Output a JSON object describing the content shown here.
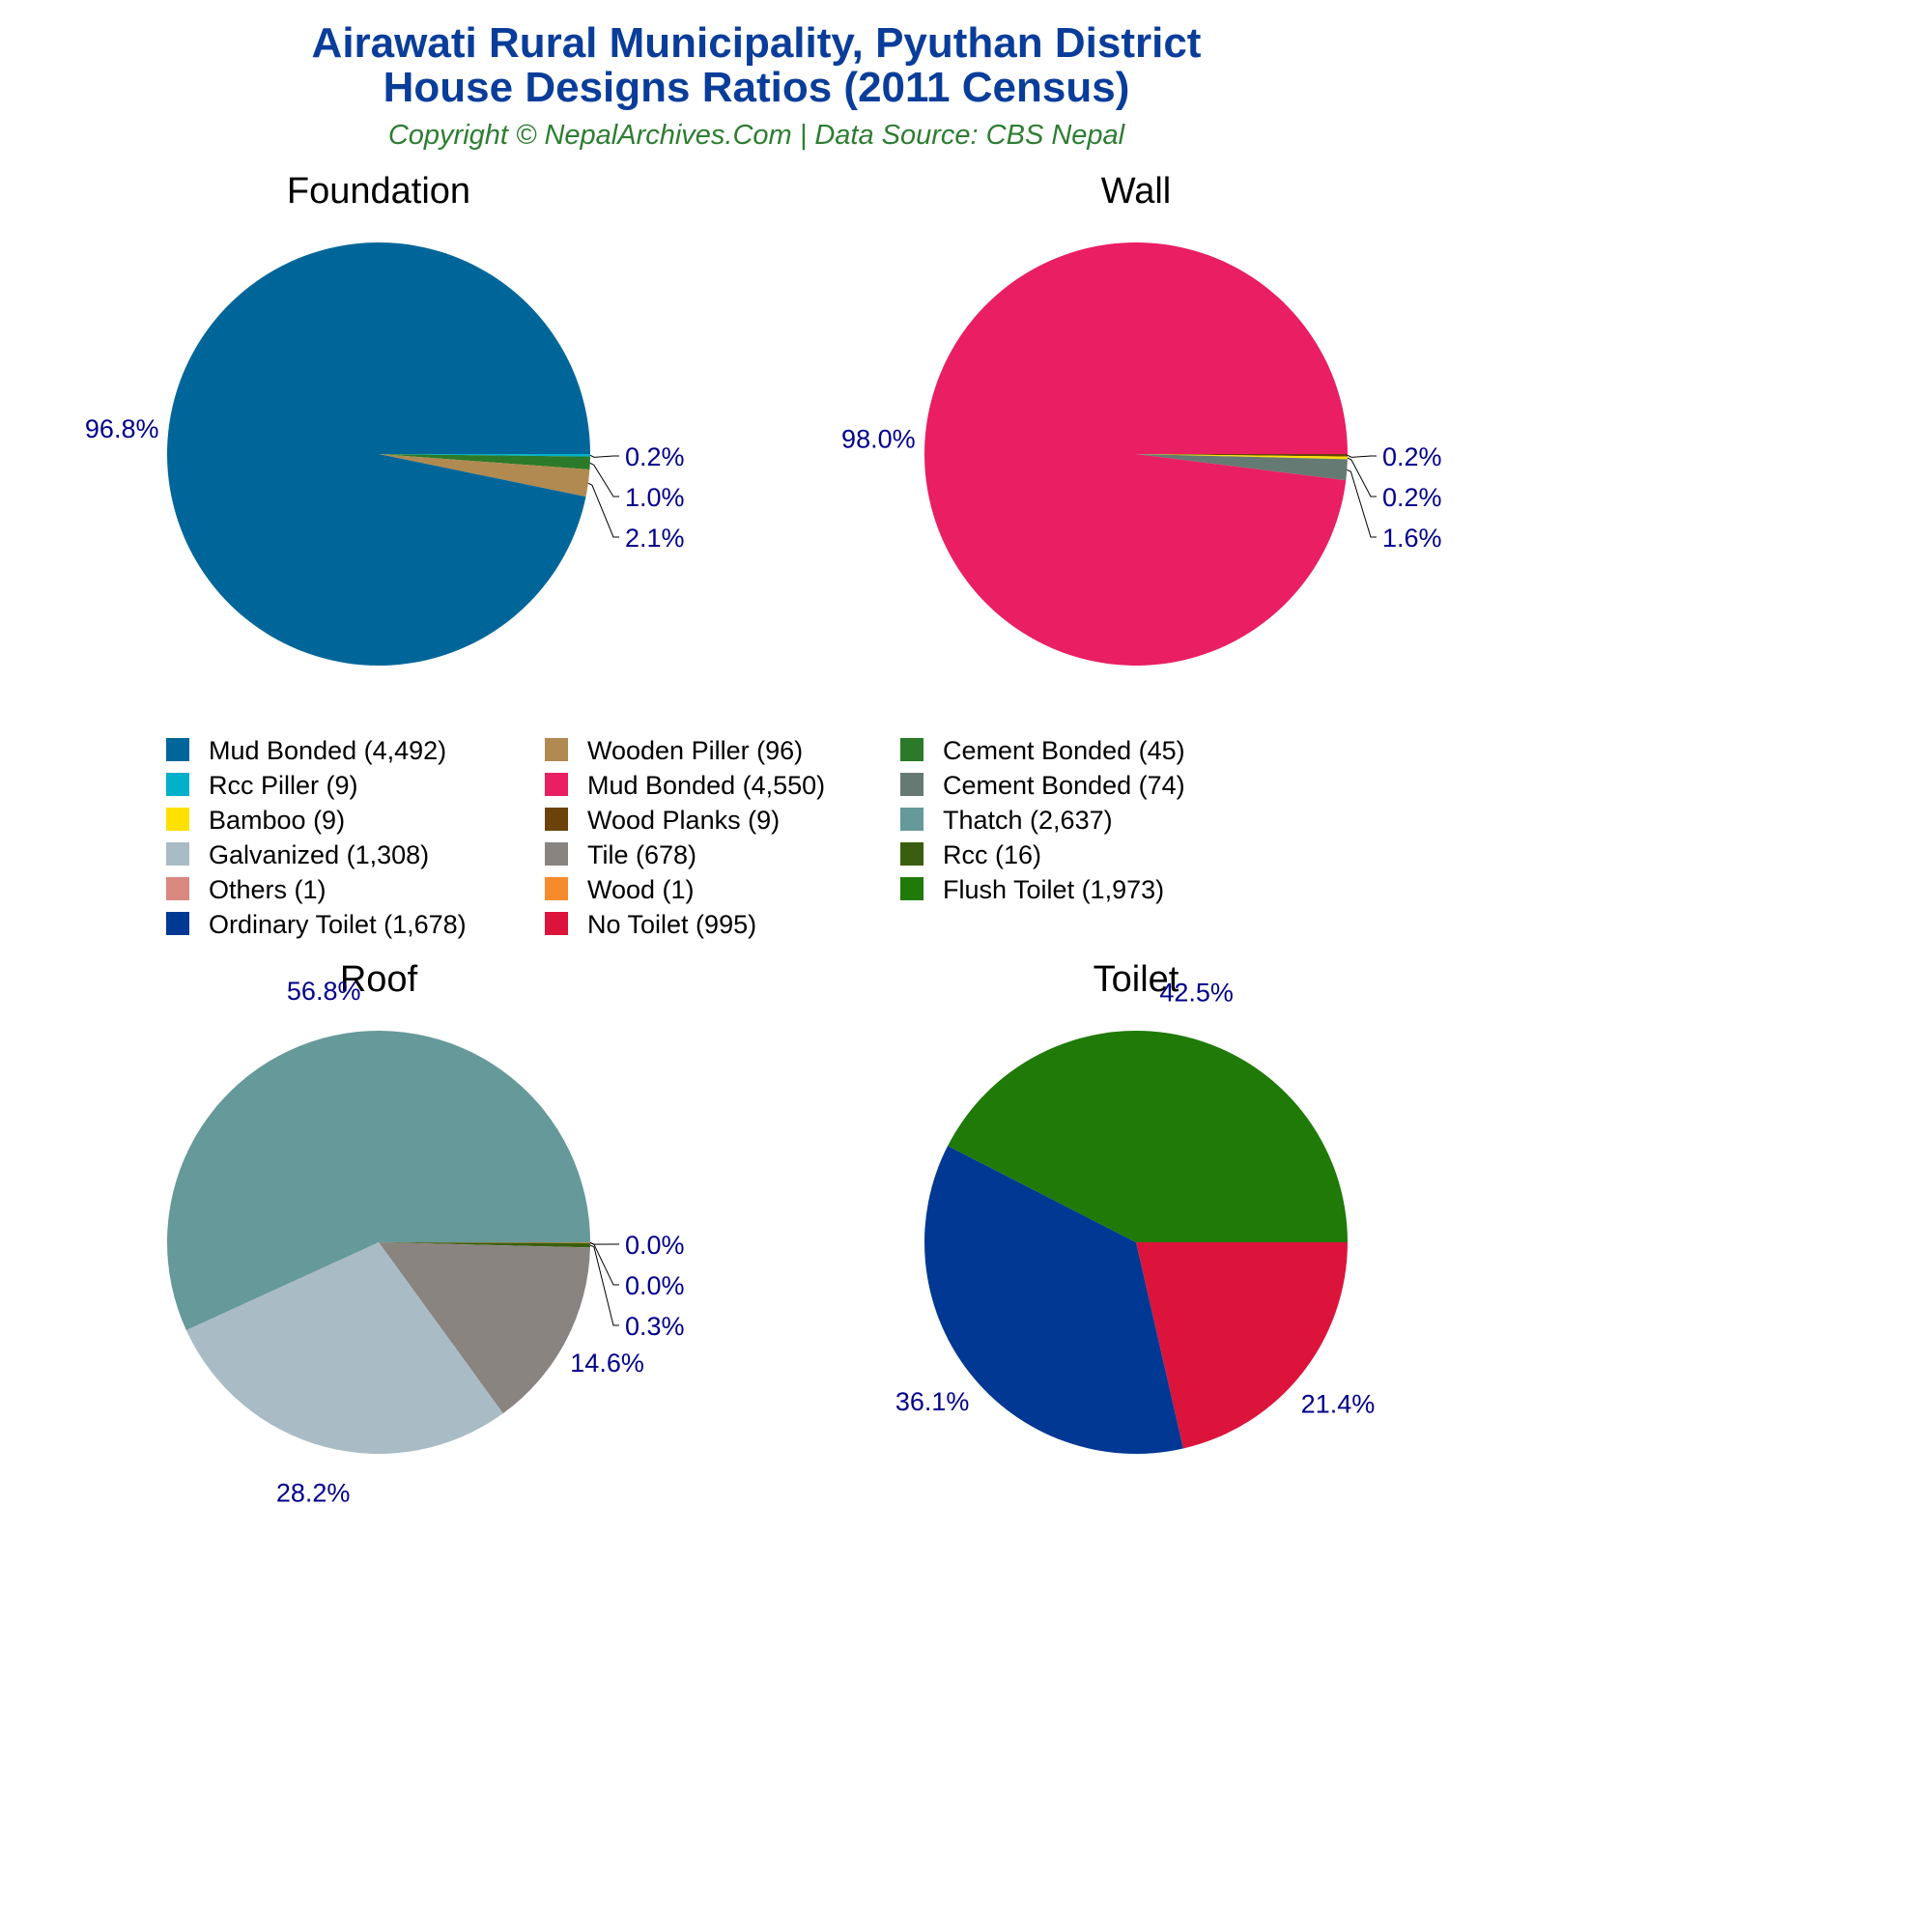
{
  "chart_data": [
    {
      "type": "pie",
      "title": "Foundation",
      "slices": [
        {
          "label": "Rcc Piller",
          "value": 9,
          "pct": "0.2%",
          "color": "#00b0c8"
        },
        {
          "label": "Cement Bonded",
          "value": 45,
          "pct": "1.0%",
          "color": "#2a7a2a"
        },
        {
          "label": "Wooden Piller",
          "value": 96,
          "pct": "2.1%",
          "color": "#b08a50"
        },
        {
          "label": "Mud Bonded",
          "value": 4492,
          "pct": "96.8%",
          "color": "#006699"
        }
      ]
    },
    {
      "type": "pie",
      "title": "Wall",
      "slices": [
        {
          "label": "Wood Planks",
          "value": 9,
          "pct": "0.2%",
          "color": "#6b4209"
        },
        {
          "label": "Bamboo",
          "value": 9,
          "pct": "0.2%",
          "color": "#ffe000"
        },
        {
          "label": "Cement Bonded",
          "value": 74,
          "pct": "1.6%",
          "color": "#657a72"
        },
        {
          "label": "Mud Bonded",
          "value": 4550,
          "pct": "98.0%",
          "color": "#e91e63"
        }
      ]
    },
    {
      "type": "pie",
      "title": "Roof",
      "slices": [
        {
          "label": "Others",
          "value": 1,
          "pct": "0.0%",
          "color": "#d98880"
        },
        {
          "label": "Wood",
          "value": 1,
          "pct": "0.0%",
          "color": "#f78a2a"
        },
        {
          "label": "Rcc",
          "value": 16,
          "pct": "0.3%",
          "color": "#3a5e0f"
        },
        {
          "label": "Tile",
          "value": 678,
          "pct": "14.6%",
          "color": "#8a8480"
        },
        {
          "label": "Galvanized",
          "value": 1308,
          "pct": "28.2%",
          "color": "#a9bcc5"
        },
        {
          "label": "Thatch",
          "value": 2637,
          "pct": "56.8%",
          "color": "#669999"
        }
      ]
    },
    {
      "type": "pie",
      "title": "Toilet",
      "slices": [
        {
          "label": "No Toilet",
          "value": 995,
          "pct": "21.4%",
          "color": "#dc143c"
        },
        {
          "label": "Ordinary Toilet",
          "value": 1678,
          "pct": "36.1%",
          "color": "#003893"
        },
        {
          "label": "Flush Toilet",
          "value": 1973,
          "pct": "42.5%",
          "color": "#1f7a08"
        }
      ]
    }
  ],
  "header": {
    "title_line1": "Airawati Rural Municipality, Pyuthan District",
    "title_line2": "House Designs Ratios (2011 Census)",
    "subtitle": "Copyright © NepalArchives.Com | Data Source: CBS Nepal"
  },
  "legend": [
    {
      "text": "Mud Bonded (4,492)",
      "color": "#006699"
    },
    {
      "text": "Rcc Piller (9)",
      "color": "#00b0c8"
    },
    {
      "text": "Bamboo (9)",
      "color": "#ffe000"
    },
    {
      "text": "Galvanized (1,308)",
      "color": "#a9bcc5"
    },
    {
      "text": "Others (1)",
      "color": "#d98880"
    },
    {
      "text": "Ordinary Toilet (1,678)",
      "color": "#003893"
    },
    {
      "text": "Wooden Piller (96)",
      "color": "#b08a50"
    },
    {
      "text": "Mud Bonded (4,550)",
      "color": "#e91e63"
    },
    {
      "text": "Wood Planks (9)",
      "color": "#6b4209"
    },
    {
      "text": "Tile (678)",
      "color": "#8a8480"
    },
    {
      "text": "Wood (1)",
      "color": "#f78a2a"
    },
    {
      "text": "No Toilet (995)",
      "color": "#dc143c"
    },
    {
      "text": "Cement Bonded (45)",
      "color": "#2a7a2a"
    },
    {
      "text": "Cement Bonded (74)",
      "color": "#657a72"
    },
    {
      "text": "Thatch (2,637)",
      "color": "#669999"
    },
    {
      "text": "Rcc (16)",
      "color": "#3a5e0f"
    },
    {
      "text": "Flush Toilet (1,973)",
      "color": "#1f7a08"
    }
  ]
}
